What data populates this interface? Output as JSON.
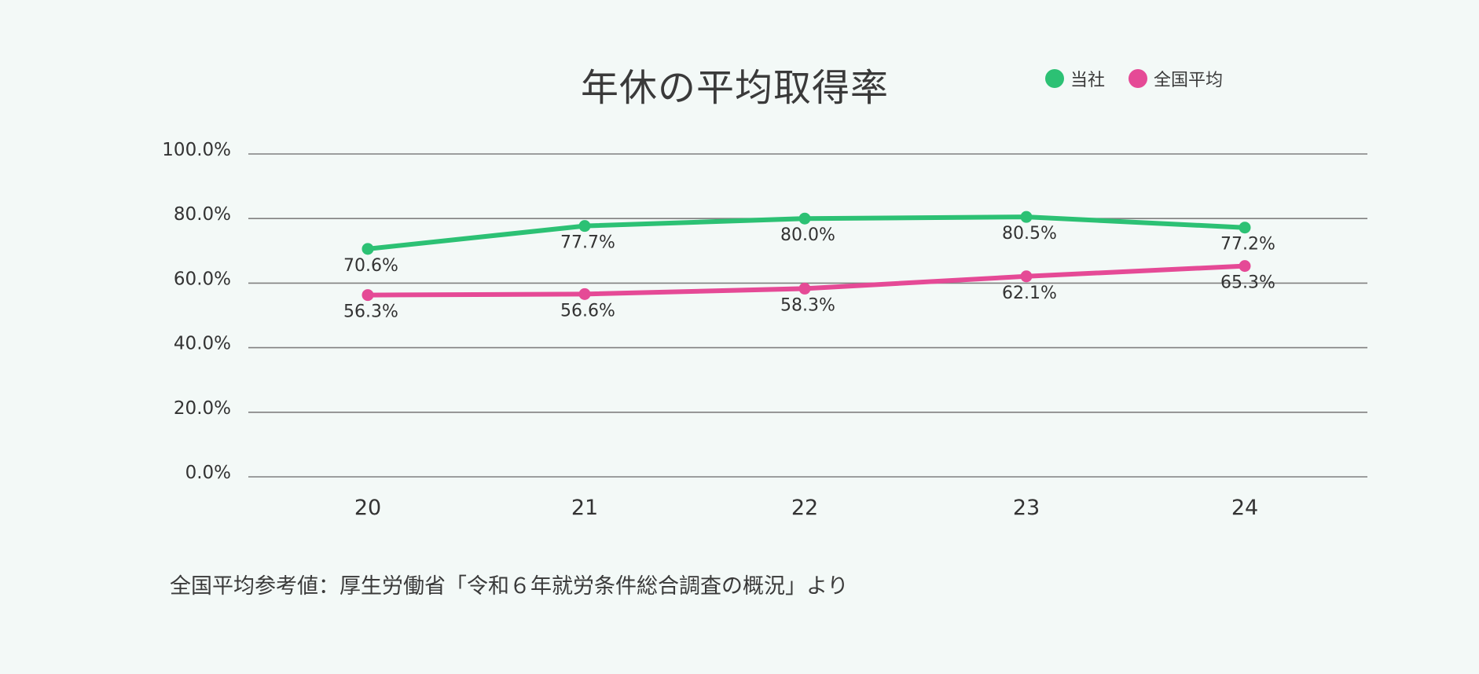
{
  "chart_data": {
    "type": "line",
    "title": "年休の平均取得率",
    "categories": [
      "20",
      "21",
      "22",
      "23",
      "24"
    ],
    "series": [
      {
        "name": "当社",
        "color": "#2cc174",
        "values": [
          70.6,
          77.7,
          80.0,
          80.5,
          77.2
        ],
        "labels": [
          "70.6%",
          "77.7%",
          "80.0%",
          "80.5%",
          "77.2%"
        ]
      },
      {
        "name": "全国平均",
        "color": "#e54a96",
        "values": [
          56.3,
          56.6,
          58.3,
          62.1,
          65.3
        ],
        "labels": [
          "56.3%",
          "56.6%",
          "58.3%",
          "62.1%",
          "65.3%"
        ]
      }
    ],
    "yticks": [
      0,
      20,
      40,
      60,
      80,
      100
    ],
    "ytick_labels": [
      "0.0%",
      "20.0%",
      "40.0%",
      "60.0%",
      "80.0%",
      "100.0%"
    ],
    "ylim": [
      0,
      100
    ],
    "grid": true,
    "legend_position": "top-right"
  },
  "footnote": "全国平均参考値：厚生労働省「令和６年就労条件総合調査の概況」より"
}
